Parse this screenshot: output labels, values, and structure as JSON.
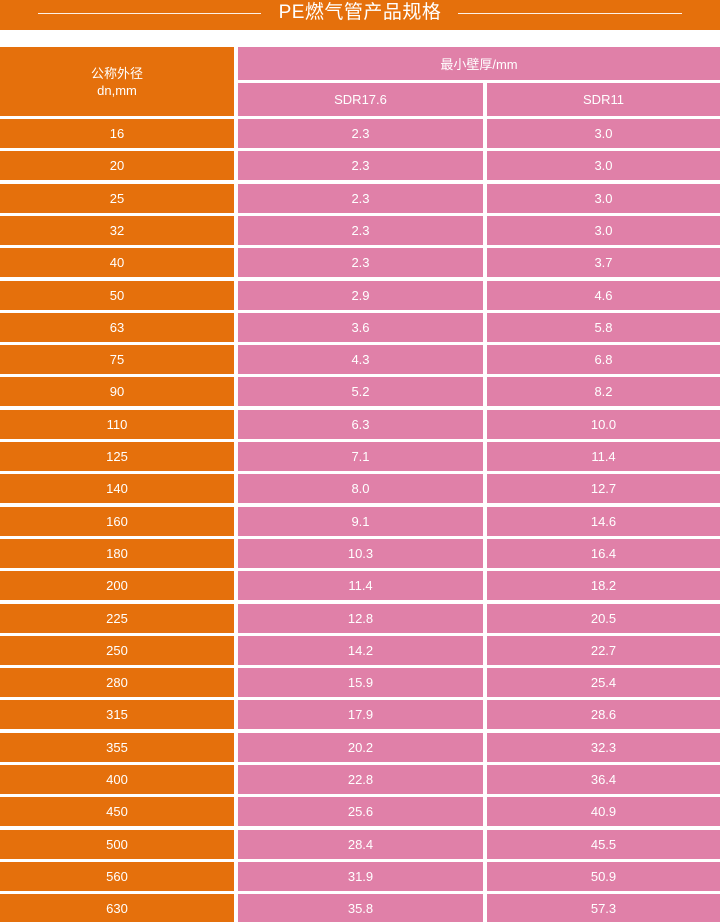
{
  "title": "PE燃气管产品规格",
  "header": {
    "dn_label_line1": "公称外径",
    "dn_label_line2": "dn,mm",
    "wall_label": "最小壁厚/mm",
    "col_a": "SDR17.6",
    "col_b": "SDR11"
  },
  "rows": [
    {
      "dn": "16",
      "a": "2.3",
      "b": "3.0"
    },
    {
      "dn": "20",
      "a": "2.3",
      "b": "3.0"
    },
    {
      "dn": "25",
      "a": "2.3",
      "b": "3.0"
    },
    {
      "dn": "32",
      "a": "2.3",
      "b": "3.0"
    },
    {
      "dn": "40",
      "a": "2.3",
      "b": "3.7"
    },
    {
      "dn": "50",
      "a": "2.9",
      "b": "4.6"
    },
    {
      "dn": "63",
      "a": "3.6",
      "b": "5.8"
    },
    {
      "dn": "75",
      "a": "4.3",
      "b": "6.8"
    },
    {
      "dn": "90",
      "a": "5.2",
      "b": "8.2"
    },
    {
      "dn": "110",
      "a": "6.3",
      "b": "10.0"
    },
    {
      "dn": "125",
      "a": "7.1",
      "b": "11.4"
    },
    {
      "dn": "140",
      "a": "8.0",
      "b": "12.7"
    },
    {
      "dn": "160",
      "a": "9.1",
      "b": "14.6"
    },
    {
      "dn": "180",
      "a": "10.3",
      "b": "16.4"
    },
    {
      "dn": "200",
      "a": "11.4",
      "b": "18.2"
    },
    {
      "dn": "225",
      "a": "12.8",
      "b": "20.5"
    },
    {
      "dn": "250",
      "a": "14.2",
      "b": "22.7"
    },
    {
      "dn": "280",
      "a": "15.9",
      "b": "25.4"
    },
    {
      "dn": "315",
      "a": "17.9",
      "b": "28.6"
    },
    {
      "dn": "355",
      "a": "20.2",
      "b": "32.3"
    },
    {
      "dn": "400",
      "a": "22.8",
      "b": "36.4"
    },
    {
      "dn": "450",
      "a": "25.6",
      "b": "40.9"
    },
    {
      "dn": "500",
      "a": "28.4",
      "b": "45.5"
    },
    {
      "dn": "560",
      "a": "31.9",
      "b": "50.9"
    },
    {
      "dn": "630",
      "a": "35.8",
      "b": "57.3"
    }
  ]
}
